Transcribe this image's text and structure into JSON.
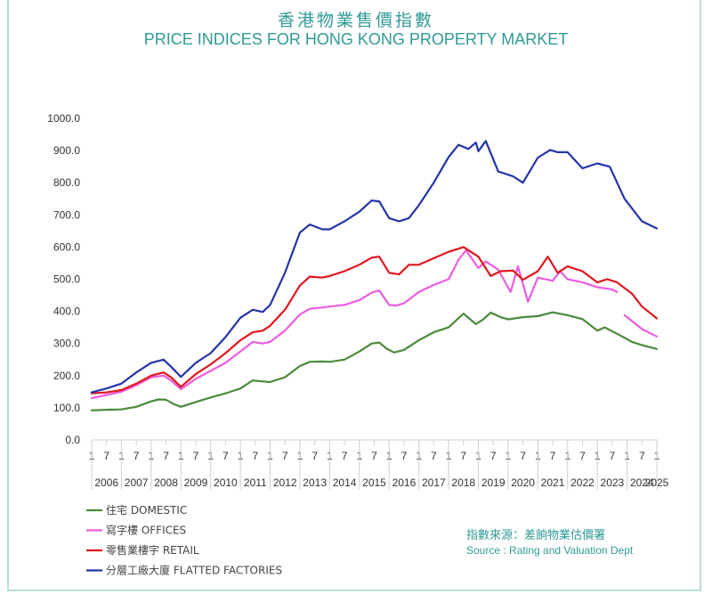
{
  "header": {
    "title_zh": "香港物業售價指數",
    "title_en": "PRICE INDICES FOR HONG KONG PROPERTY MARKET"
  },
  "source": {
    "zh": "指數來源：差餉物業估價署",
    "en": "Source : Rating and Valuation Dept"
  },
  "chart_data": {
    "type": "line",
    "ylim": [
      0,
      1000
    ],
    "yticks": [
      "0.0",
      "100.0",
      "200.0",
      "300.0",
      "400.0",
      "500.0",
      "600.0",
      "700.0",
      "800.0",
      "900.0",
      "1000.0"
    ],
    "xlim": [
      "2006-01",
      "2025-01"
    ],
    "month_ticks": [
      "1",
      "7",
      "1",
      "7",
      "1",
      "7",
      "1",
      "7",
      "1",
      "7",
      "1",
      "7",
      "1",
      "7",
      "1",
      "7",
      "1",
      "7",
      "1",
      "7",
      "1",
      "7",
      "1",
      "7",
      "1",
      "7",
      "1",
      "7",
      "1",
      "7",
      "1",
      "7",
      "1",
      "7",
      "1",
      "7",
      "1",
      "7",
      "1"
    ],
    "years": [
      "2006",
      "2007",
      "2008",
      "2009",
      "2010",
      "2011",
      "2012",
      "2013",
      "2014",
      "2015",
      "2016",
      "2017",
      "2018",
      "2019",
      "2020",
      "2021",
      "2022",
      "2023",
      "2024",
      "2025"
    ],
    "grid": false,
    "legend_position": "bottom-left",
    "series": [
      {
        "name": "住宅 DOMESTIC",
        "color": "#4a8a3a",
        "points": [
          [
            "2006-01",
            92
          ],
          [
            "2006-07",
            94
          ],
          [
            "2007-01",
            95
          ],
          [
            "2007-07",
            103
          ],
          [
            "2008-01",
            120
          ],
          [
            "2008-04",
            126
          ],
          [
            "2008-07",
            125
          ],
          [
            "2008-10",
            112
          ],
          [
            "2009-01",
            103
          ],
          [
            "2009-07",
            118
          ],
          [
            "2010-01",
            132
          ],
          [
            "2010-07",
            145
          ],
          [
            "2011-01",
            160
          ],
          [
            "2011-06",
            185
          ],
          [
            "2011-10",
            182
          ],
          [
            "2012-01",
            180
          ],
          [
            "2012-07",
            195
          ],
          [
            "2013-01",
            230
          ],
          [
            "2013-05",
            243
          ],
          [
            "2013-10",
            244
          ],
          [
            "2014-01",
            243
          ],
          [
            "2014-07",
            250
          ],
          [
            "2015-01",
            275
          ],
          [
            "2015-06",
            300
          ],
          [
            "2015-09",
            303
          ],
          [
            "2015-12",
            284
          ],
          [
            "2016-03",
            272
          ],
          [
            "2016-07",
            280
          ],
          [
            "2017-01",
            310
          ],
          [
            "2017-07",
            335
          ],
          [
            "2018-01",
            350
          ],
          [
            "2018-07",
            393
          ],
          [
            "2018-12",
            360
          ],
          [
            "2019-03",
            375
          ],
          [
            "2019-06",
            396
          ],
          [
            "2019-10",
            382
          ],
          [
            "2020-01",
            375
          ],
          [
            "2020-07",
            382
          ],
          [
            "2021-01",
            385
          ],
          [
            "2021-07",
            397
          ],
          [
            "2022-01",
            388
          ],
          [
            "2022-07",
            376
          ],
          [
            "2023-01",
            340
          ],
          [
            "2023-04",
            350
          ],
          [
            "2023-10",
            326
          ],
          [
            "2024-03",
            305
          ],
          [
            "2024-07",
            295
          ],
          [
            "2025-01",
            283
          ]
        ]
      },
      {
        "name": "寫字樓 OFFICES",
        "color": "#ec5ce0",
        "points": [
          [
            "2006-01",
            130
          ],
          [
            "2006-07",
            140
          ],
          [
            "2007-01",
            150
          ],
          [
            "2007-07",
            170
          ],
          [
            "2008-01",
            195
          ],
          [
            "2008-06",
            200
          ],
          [
            "2008-09",
            185
          ],
          [
            "2009-01",
            158
          ],
          [
            "2009-07",
            190
          ],
          [
            "2010-01",
            215
          ],
          [
            "2010-07",
            240
          ],
          [
            "2011-01",
            275
          ],
          [
            "2011-06",
            305
          ],
          [
            "2011-10",
            300
          ],
          [
            "2012-01",
            305
          ],
          [
            "2012-07",
            340
          ],
          [
            "2013-01",
            390
          ],
          [
            "2013-05",
            408
          ],
          [
            "2013-10",
            412
          ],
          [
            "2014-01",
            415
          ],
          [
            "2014-07",
            420
          ],
          [
            "2015-01",
            435
          ],
          [
            "2015-06",
            458
          ],
          [
            "2015-09",
            465
          ],
          [
            "2016-01",
            420
          ],
          [
            "2016-04",
            418
          ],
          [
            "2016-07",
            425
          ],
          [
            "2017-01",
            460
          ],
          [
            "2017-07",
            482
          ],
          [
            "2018-01",
            500
          ],
          [
            "2018-05",
            560
          ],
          [
            "2018-08",
            590
          ],
          [
            "2019-01",
            535
          ],
          [
            "2019-04",
            555
          ],
          [
            "2019-09",
            530
          ],
          [
            "2020-02",
            460
          ],
          [
            "2020-05",
            540
          ],
          [
            "2020-09",
            430
          ],
          [
            "2021-01",
            505
          ],
          [
            "2021-07",
            495
          ],
          [
            "2021-10",
            525
          ],
          [
            "2022-01",
            500
          ],
          [
            "2022-07",
            490
          ],
          [
            "2023-01",
            475
          ],
          [
            "2023-07",
            468
          ],
          [
            "2023-09",
            460
          ],
          null,
          [
            "2023-12",
            388
          ],
          [
            "2024-07",
            345
          ],
          [
            "2025-01",
            322
          ]
        ]
      },
      {
        "name": "零售業樓宇 RETAIL",
        "color": "#e0161c",
        "points": [
          [
            "2006-01",
            145
          ],
          [
            "2006-07",
            148
          ],
          [
            "2007-01",
            155
          ],
          [
            "2007-07",
            175
          ],
          [
            "2008-01",
            200
          ],
          [
            "2008-06",
            210
          ],
          [
            "2008-09",
            195
          ],
          [
            "2009-01",
            165
          ],
          [
            "2009-07",
            205
          ],
          [
            "2010-01",
            235
          ],
          [
            "2010-07",
            270
          ],
          [
            "2011-01",
            310
          ],
          [
            "2011-06",
            335
          ],
          [
            "2011-10",
            340
          ],
          [
            "2012-01",
            355
          ],
          [
            "2012-07",
            405
          ],
          [
            "2013-01",
            480
          ],
          [
            "2013-05",
            508
          ],
          [
            "2013-10",
            505
          ],
          [
            "2014-01",
            510
          ],
          [
            "2014-07",
            525
          ],
          [
            "2015-01",
            545
          ],
          [
            "2015-06",
            567
          ],
          [
            "2015-09",
            570
          ],
          [
            "2016-01",
            520
          ],
          [
            "2016-05",
            515
          ],
          [
            "2016-09",
            545
          ],
          [
            "2017-01",
            545
          ],
          [
            "2017-07",
            565
          ],
          [
            "2018-01",
            585
          ],
          [
            "2018-07",
            600
          ],
          [
            "2018-10",
            585
          ],
          [
            "2019-01",
            570
          ],
          [
            "2019-06",
            510
          ],
          [
            "2019-10",
            525
          ],
          [
            "2020-03",
            527
          ],
          [
            "2020-07",
            498
          ],
          [
            "2021-01",
            525
          ],
          [
            "2021-05",
            570
          ],
          [
            "2021-09",
            520
          ],
          [
            "2022-01",
            540
          ],
          [
            "2022-07",
            525
          ],
          [
            "2023-01",
            490
          ],
          [
            "2023-05",
            500
          ],
          [
            "2023-09",
            490
          ],
          [
            "2024-03",
            455
          ],
          [
            "2024-07",
            415
          ],
          [
            "2025-01",
            378
          ]
        ]
      },
      {
        "name": "分層工廠大廈 FLATTED FACTORIES",
        "color": "#2334a8",
        "points": [
          [
            "2006-01",
            148
          ],
          [
            "2006-07",
            160
          ],
          [
            "2007-01",
            175
          ],
          [
            "2007-07",
            210
          ],
          [
            "2008-01",
            240
          ],
          [
            "2008-06",
            250
          ],
          [
            "2008-09",
            228
          ],
          [
            "2009-01",
            196
          ],
          [
            "2009-07",
            240
          ],
          [
            "2010-01",
            270
          ],
          [
            "2010-07",
            320
          ],
          [
            "2011-01",
            380
          ],
          [
            "2011-06",
            405
          ],
          [
            "2011-10",
            398
          ],
          [
            "2012-01",
            420
          ],
          [
            "2012-07",
            520
          ],
          [
            "2013-01",
            645
          ],
          [
            "2013-05",
            670
          ],
          [
            "2013-10",
            655
          ],
          [
            "2014-01",
            655
          ],
          [
            "2014-07",
            680
          ],
          [
            "2015-01",
            710
          ],
          [
            "2015-06",
            745
          ],
          [
            "2015-09",
            742
          ],
          [
            "2016-01",
            690
          ],
          [
            "2016-05",
            680
          ],
          [
            "2016-09",
            690
          ],
          [
            "2017-01",
            730
          ],
          [
            "2017-07",
            800
          ],
          [
            "2018-01",
            880
          ],
          [
            "2018-05",
            918
          ],
          [
            "2018-09",
            905
          ],
          [
            "2018-12",
            925
          ],
          [
            "2019-01",
            898
          ],
          [
            "2019-04",
            930
          ],
          [
            "2019-09",
            835
          ],
          [
            "2020-03",
            820
          ],
          [
            "2020-07",
            800
          ],
          [
            "2021-01",
            878
          ],
          [
            "2021-06",
            902
          ],
          [
            "2021-09",
            895
          ],
          [
            "2022-01",
            895
          ],
          [
            "2022-07",
            845
          ],
          [
            "2023-01",
            860
          ],
          [
            "2023-06",
            850
          ],
          [
            "2023-12",
            750
          ],
          [
            "2024-07",
            680
          ],
          [
            "2025-01",
            658
          ]
        ]
      }
    ]
  }
}
